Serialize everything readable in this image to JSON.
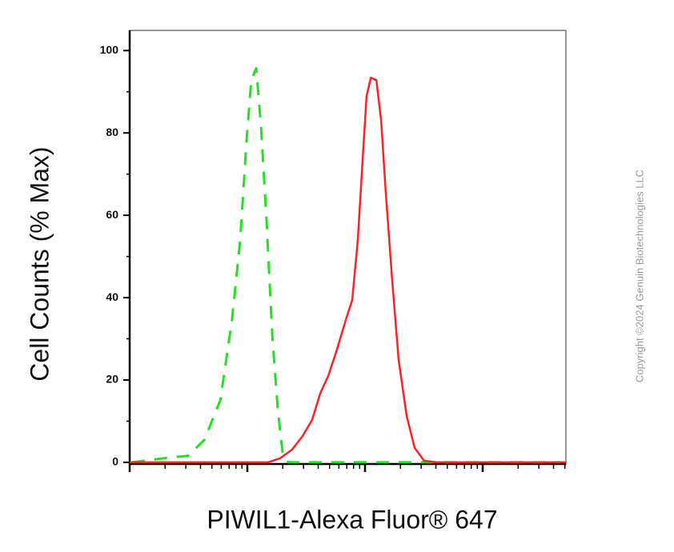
{
  "chart_data": {
    "type": "line",
    "x_label": "PIWIL1-Alexa Fluor® 647",
    "y_label": "Cell Counts (% Max)",
    "watermark": "Copyright ©2024 Genuin Biotechnologies LLC",
    "x_log": true,
    "xlim": [
      1,
      5100
    ],
    "xticks": [
      1,
      10,
      100,
      1000
    ],
    "xminor_ticks": [
      2,
      3,
      4,
      5,
      6,
      7,
      8,
      9,
      20,
      30,
      40,
      50,
      60,
      70,
      80,
      90,
      200,
      300,
      400,
      500,
      600,
      700,
      800,
      900,
      2000,
      3000,
      4000,
      5000
    ],
    "ylim": [
      -0.4,
      104.9
    ],
    "yticks": [
      0,
      20,
      40,
      60,
      80,
      100
    ],
    "yminor_ticks": [
      10,
      30,
      50,
      70,
      90
    ],
    "series": [
      {
        "color": "#22e022",
        "dashed": true,
        "x": [
          1.05,
          1.96,
          3.14,
          4.3,
          5.9,
          7.4,
          8.7,
          9.8,
          10.8,
          11.9,
          13.1,
          14.6,
          16.3,
          18.1,
          19.9,
          22.2,
          26,
          373,
          4570
        ],
        "values": [
          0,
          1,
          1.6,
          5.4,
          15.1,
          34.6,
          54,
          77.3,
          92.8,
          95.7,
          81.2,
          57.9,
          30.7,
          13.2,
          2.5,
          0,
          0,
          0,
          0
        ]
      },
      {
        "color": "#ff2020",
        "dashed": false,
        "x": [
          1,
          15,
          19,
          24,
          29.5,
          35.5,
          41.6,
          48.7,
          56.9,
          68.7,
          77.8,
          86.9,
          95.4,
          103,
          112,
          125,
          137,
          150,
          170,
          193,
          226,
          264,
          318,
          403,
          5100
        ],
        "values": [
          0,
          0,
          1,
          3.1,
          6.4,
          10.3,
          16.7,
          21,
          26.8,
          34.6,
          39.4,
          54,
          73.4,
          88.9,
          93.4,
          92.8,
          83.1,
          65.6,
          44.3,
          24.9,
          11.3,
          3.5,
          0.4,
          0,
          0
        ]
      }
    ]
  }
}
